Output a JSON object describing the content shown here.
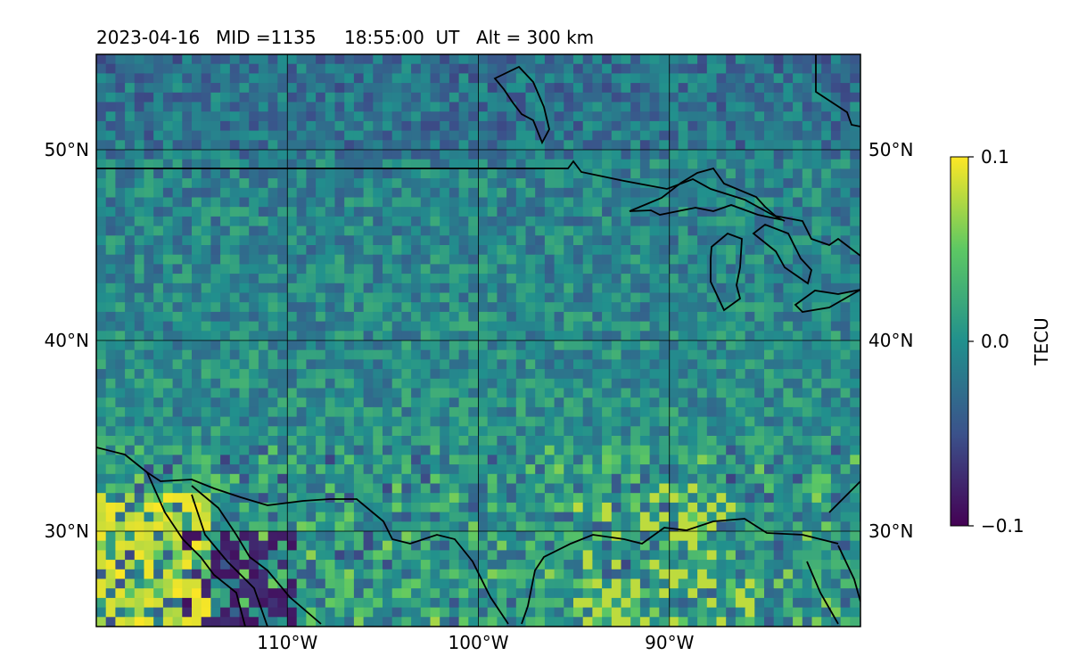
{
  "header": {
    "date": "2023-04-16",
    "mid": "MID =1135",
    "time": "18:55:00  UT",
    "alt": "Alt = 300 km"
  },
  "map": {
    "lon_range": [
      -120,
      -80
    ],
    "lat_range": [
      25,
      55
    ],
    "gridlines": true,
    "lat_ticks": [
      {
        "value": 30,
        "label": "30°N"
      },
      {
        "value": 40,
        "label": "40°N"
      },
      {
        "value": 50,
        "label": "50°N"
      }
    ],
    "lon_ticks": [
      {
        "value": -110,
        "label": "110°W"
      },
      {
        "value": -100,
        "label": "100°W"
      },
      {
        "value": -90,
        "label": "90°W"
      }
    ],
    "field": {
      "type": "heatmap",
      "colormap": "viridis",
      "description_values_tecu_min": -0.1,
      "description_values_tecu_max": 0.1
    },
    "colors": {
      "coastline": "#000000",
      "grid": "#000000"
    }
  },
  "colorbar": {
    "label": "TECU",
    "min": -0.1,
    "max": 0.1,
    "ticks": [
      {
        "value": 0.1,
        "label": "0.1"
      },
      {
        "value": 0.0,
        "label": "0.0"
      },
      {
        "value": -0.1,
        "label": "−0.1"
      }
    ],
    "colors": [
      "#440154",
      "#3b528b",
      "#21908d",
      "#5dc863",
      "#fde725"
    ]
  }
}
